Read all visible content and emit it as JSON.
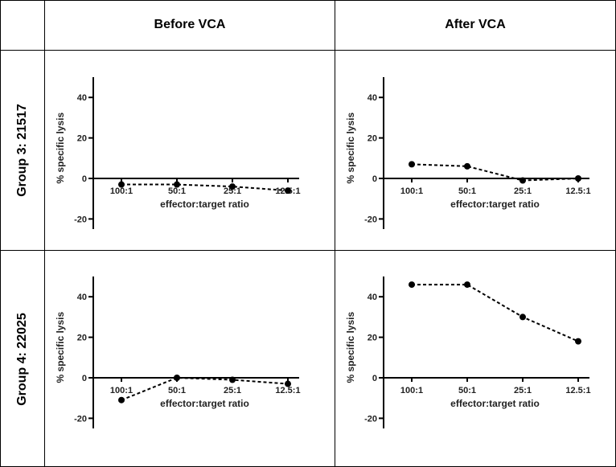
{
  "columns": [
    "Before VCA",
    "After VCA"
  ],
  "rows": [
    "Group 3: 21517",
    "Group 4: 22025"
  ],
  "chart_data": [
    {
      "type": "line",
      "group": "Group 3: 21517",
      "condition": "Before VCA",
      "categories": [
        "100:1",
        "50:1",
        "25:1",
        "12.5:1"
      ],
      "values": [
        -3,
        -3,
        -4,
        -6
      ],
      "xlabel": "effector:target ratio",
      "ylabel": "% specific lysis",
      "yticks": [
        "-20",
        "0",
        "20",
        "40"
      ],
      "ylim": [
        -25,
        50
      ]
    },
    {
      "type": "line",
      "group": "Group 3: 21517",
      "condition": "After VCA",
      "categories": [
        "100:1",
        "50:1",
        "25:1",
        "12.5:1"
      ],
      "values": [
        7,
        6,
        -1,
        0
      ],
      "xlabel": "effector:target ratio",
      "ylabel": "% specific lysis",
      "yticks": [
        "-20",
        "0",
        "20",
        "40"
      ],
      "ylim": [
        -25,
        50
      ]
    },
    {
      "type": "line",
      "group": "Group 4: 22025",
      "condition": "Before VCA",
      "categories": [
        "100:1",
        "50:1",
        "25:1",
        "12.5:1"
      ],
      "values": [
        -11,
        0,
        -1,
        -3
      ],
      "xlabel": "effector:target ratio",
      "ylabel": "% specific lysis",
      "yticks": [
        "-20",
        "0",
        "20",
        "40"
      ],
      "ylim": [
        -25,
        50
      ]
    },
    {
      "type": "line",
      "group": "Group 4: 22025",
      "condition": "After VCA",
      "categories": [
        "100:1",
        "50:1",
        "25:1",
        "12.5:1"
      ],
      "values": [
        46,
        46,
        30,
        18
      ],
      "xlabel": "effector:target ratio",
      "ylabel": "% specific lysis",
      "yticks": [
        "-20",
        "0",
        "20",
        "40"
      ],
      "ylim": [
        -25,
        50
      ]
    }
  ]
}
